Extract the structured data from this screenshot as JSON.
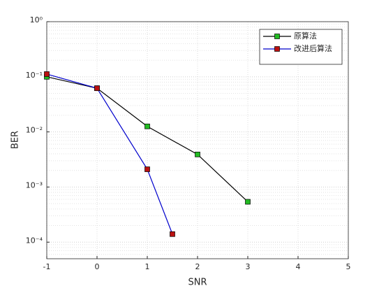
{
  "chart_data": {
    "type": "line",
    "xlabel": "SNR",
    "ylabel": "BER",
    "xlim": [
      -1,
      5
    ],
    "xticks": [
      -1,
      0,
      1,
      2,
      3,
      4,
      5
    ],
    "ylim": [
      5e-05,
      1
    ],
    "log_y": true,
    "yticks": [
      {
        "value": 1,
        "label": "10⁰"
      },
      {
        "value": 0.1,
        "label": "10⁻¹"
      },
      {
        "value": 0.01,
        "label": "10⁻²"
      },
      {
        "value": 0.001,
        "label": "10⁻³"
      },
      {
        "value": 0.0001,
        "label": "10⁻⁴"
      }
    ],
    "grid": true,
    "minor_grid": true,
    "legend": "northeast",
    "series": [
      {
        "name": "原算法",
        "color": "#000000",
        "marker_color": "#22bb22",
        "x": [
          -1,
          0,
          1,
          2,
          3
        ],
        "values": [
          0.1,
          0.062,
          0.0126,
          0.0039,
          0.00054
        ]
      },
      {
        "name": "改进后算法",
        "color": "#0000cc",
        "marker_color": "#bb1111",
        "x": [
          -1,
          0,
          1,
          1.5
        ],
        "values": [
          0.112,
          0.062,
          0.0021,
          0.00014
        ]
      }
    ]
  }
}
